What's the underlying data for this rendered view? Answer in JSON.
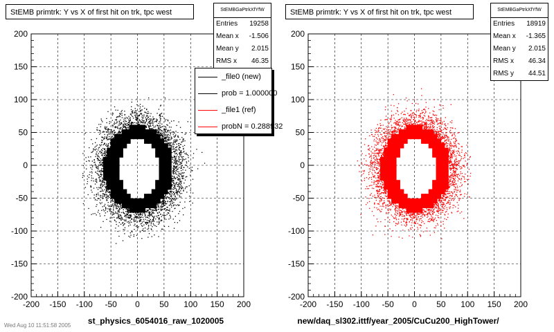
{
  "chart_data": [
    {
      "type": "scatter",
      "title": "StEMB primtrk: Y vs X of first hit on trk, tpc west",
      "xlabel": "st_physics_6054016_raw_1020005",
      "ylabel": "",
      "xlim": [
        -200,
        200
      ],
      "ylim": [
        -200,
        200
      ],
      "xticks": [
        -200,
        -150,
        -100,
        -50,
        0,
        50,
        100,
        150,
        200
      ],
      "yticks": [
        -200,
        -150,
        -100,
        -50,
        0,
        50,
        100,
        150,
        200
      ],
      "grid": true,
      "marker_color": "#000000",
      "ring": {
        "x_range": [
          -60,
          65
        ],
        "y_range": [
          -68,
          58
        ],
        "inner_rx": 38,
        "inner_ry": 45
      },
      "stats": {
        "name": "StEMBGaPtrkXfYfW",
        "rows": [
          {
            "label": "Entries",
            "value": "19258"
          },
          {
            "label": "Mean x",
            "value": "-1.506"
          },
          {
            "label": "Mean y",
            "value": "2.015"
          },
          {
            "label": "RMS x",
            "value": "46.35"
          }
        ]
      },
      "legend": {
        "placement": "top-right",
        "entries": [
          {
            "label": "_file0 (new)",
            "color": "#000000"
          },
          {
            "label": "prob = 1.000000",
            "color": "#000000"
          },
          {
            "label": "_file1 (ref)",
            "color": "#ff0000"
          },
          {
            "label": "probN = 0.288932",
            "color": "#ff0000"
          }
        ]
      }
    },
    {
      "type": "scatter",
      "title": "StEMB primtrk: Y vs X of first hit on trk, tpc west",
      "xlabel": "new/daq_sl302.ittf/year_2005/CuCu200_HighTower/",
      "ylabel": "",
      "xlim": [
        -200,
        200
      ],
      "ylim": [
        -200,
        200
      ],
      "xticks": [
        -200,
        -150,
        -100,
        -50,
        0,
        50,
        100,
        150,
        200
      ],
      "yticks": [
        -200,
        -150,
        -100,
        -50,
        0,
        50,
        100,
        150,
        200
      ],
      "grid": true,
      "marker_color": "#ff0000",
      "ring": {
        "x_range": [
          -60,
          65
        ],
        "y_range": [
          -68,
          58
        ],
        "inner_rx": 38,
        "inner_ry": 45
      },
      "stats": {
        "name": "StEMBGaPtrkXfYfW",
        "rows": [
          {
            "label": "Entries",
            "value": "18919"
          },
          {
            "label": "Mean x",
            "value": "-1.365"
          },
          {
            "label": "Mean y",
            "value": "2.015"
          },
          {
            "label": "RMS x",
            "value": "46.34"
          },
          {
            "label": "RMS y",
            "value": "44.51"
          }
        ]
      }
    }
  ],
  "footer": "Wed Aug 10 11:51:58 2005"
}
